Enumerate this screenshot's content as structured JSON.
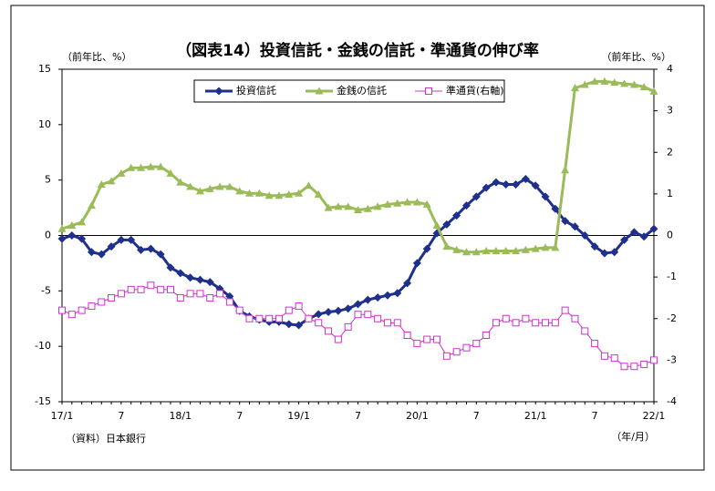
{
  "chart_data": {
    "type": "line",
    "title": "（図表14）投資信託・金銭の信託・準通貨の伸び率",
    "y_label": "（前年比、%）",
    "y2_label": "（前年比、%）",
    "x_label": "（年/月）",
    "source": "（資料）日本銀行",
    "categories": [
      "17/1",
      null,
      null,
      null,
      null,
      null,
      "7",
      null,
      null,
      null,
      null,
      null,
      "18/1",
      null,
      null,
      null,
      null,
      null,
      "7",
      null,
      null,
      null,
      null,
      null,
      "19/1",
      null,
      null,
      null,
      null,
      null,
      "7",
      null,
      null,
      null,
      null,
      null,
      "20/1",
      null,
      null,
      null,
      null,
      null,
      "7",
      null,
      null,
      null,
      null,
      null,
      "21/1",
      null,
      null,
      null,
      null,
      null,
      "7",
      null,
      null,
      null,
      null,
      null,
      "22/1"
    ],
    "ylim": [
      -15,
      15
    ],
    "yticks": [
      15,
      10,
      5,
      0,
      -5,
      -10,
      -15
    ],
    "y2lim": [
      -4,
      4
    ],
    "y2ticks": [
      4,
      3,
      2,
      1,
      0,
      -1,
      -2,
      -3,
      -4
    ],
    "legend": "top",
    "series": [
      {
        "name": "投資信託",
        "color": "#1f2f8c",
        "marker": "diamond",
        "values": [
          -0.3,
          0,
          -0.3,
          -1.5,
          -1.7,
          -1.0,
          -0.4,
          -0.4,
          -1.3,
          -1.2,
          -1.7,
          -2.9,
          -3.4,
          -3.8,
          -4.0,
          -4.2,
          -4.8,
          -5.5,
          -6.8,
          -7.3,
          -7.6,
          -7.8,
          -7.8,
          -8.0,
          -8.1,
          -7.5,
          -7.1,
          -6.9,
          -6.8,
          -6.6,
          -6.2,
          -5.8,
          -5.6,
          -5.4,
          -5.2,
          -4.3,
          -2.5,
          -1.2,
          0.2,
          1.0,
          1.8,
          2.7,
          3.5,
          4.3,
          4.8,
          4.6,
          4.6,
          5.1,
          4.5,
          3.5,
          2.4,
          1.3,
          0.8,
          0,
          -1.0,
          -1.6,
          -1.5,
          -0.4,
          0.3,
          -0.1,
          0.6
        ]
      },
      {
        "name": "金銭の信託",
        "color": "#9bbb59",
        "marker": "triangle",
        "values": [
          0.6,
          0.9,
          1.2,
          2.7,
          4.6,
          4.9,
          5.6,
          6.1,
          6.1,
          6.2,
          6.2,
          5.6,
          4.8,
          4.4,
          4.0,
          4.2,
          4.4,
          4.4,
          4.0,
          3.8,
          3.8,
          3.6,
          3.6,
          3.7,
          3.8,
          4.5,
          3.7,
          2.5,
          2.6,
          2.6,
          2.3,
          2.4,
          2.6,
          2.8,
          2.9,
          3.0,
          3.0,
          2.8,
          0.9,
          -1.0,
          -1.3,
          -1.5,
          -1.5,
          -1.4,
          -1.4,
          -1.4,
          -1.4,
          -1.3,
          -1.2,
          -1.1,
          -1.1,
          5.9,
          13.3,
          13.6,
          13.9,
          13.9,
          13.8,
          13.7,
          13.6,
          13.4,
          13.0
        ]
      },
      {
        "name": "準通貨(右軸)",
        "color": "#cc33cc",
        "marker": "square",
        "axis": "y2",
        "values": [
          -1.8,
          -1.9,
          -1.8,
          -1.7,
          -1.6,
          -1.5,
          -1.4,
          -1.3,
          -1.3,
          -1.2,
          -1.3,
          -1.3,
          -1.5,
          -1.4,
          -1.4,
          -1.5,
          -1.4,
          -1.6,
          -1.8,
          -2.0,
          -2.0,
          -2.0,
          -2.0,
          -1.8,
          -1.7,
          -2.0,
          -2.1,
          -2.3,
          -2.5,
          -2.2,
          -1.9,
          -1.9,
          -2.0,
          -2.1,
          -2.1,
          -2.4,
          -2.6,
          -2.5,
          -2.5,
          -2.9,
          -2.8,
          -2.7,
          -2.6,
          -2.4,
          -2.1,
          -2.0,
          -2.1,
          -2.0,
          -2.1,
          -2.1,
          -2.1,
          -1.8,
          -2.0,
          -2.3,
          -2.6,
          -2.9,
          -2.95,
          -3.15,
          -3.15,
          -3.1,
          -3.0
        ]
      }
    ]
  }
}
